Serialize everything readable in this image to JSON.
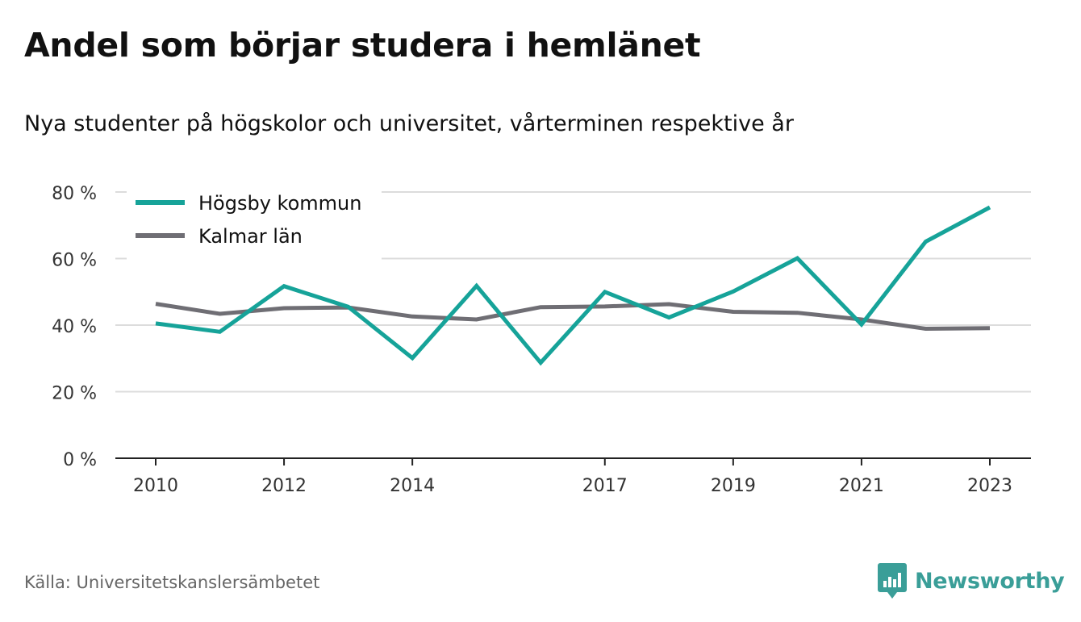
{
  "title": "Andel som börjar studera i hemlänet",
  "subtitle": "Nya studenter på högskolor och universitet, vårterminen respektive år",
  "source": "Källa: Universitetskanslersämbetet",
  "brand": {
    "name": "Newsworthy",
    "icon": "newsworthy-logo-icon",
    "color": "#3a9e98"
  },
  "chart_data": {
    "type": "line",
    "x": [
      2010,
      2011,
      2012,
      2013,
      2014,
      2015,
      2016,
      2017,
      2018,
      2019,
      2020,
      2021,
      2022,
      2023
    ],
    "x_tick_values": [
      2010,
      2012,
      2014,
      2017,
      2019,
      2021,
      2023
    ],
    "x_tick_labels": [
      "2010",
      "2012",
      "2014",
      "2017",
      "2019",
      "2021",
      "2023"
    ],
    "ylim": [
      0,
      80
    ],
    "y_tick_values": [
      0,
      20,
      40,
      60,
      80
    ],
    "y_tick_labels": [
      "0 %",
      "20 %",
      "40 %",
      "60 %",
      "80 %"
    ],
    "grid": true,
    "legend_position": "top-left",
    "series": [
      {
        "name": "Högsby kommun",
        "color": "#16a399",
        "values": [
          40.5,
          38,
          51.7,
          45.5,
          30.1,
          51.8,
          28.7,
          50,
          42.3,
          50.1,
          60.1,
          40.2,
          65.1,
          75.4
        ]
      },
      {
        "name": "Kalmar län",
        "color": "#6f6e74",
        "values": [
          46.4,
          43.4,
          45.1,
          45.3,
          42.6,
          41.7,
          45.4,
          45.6,
          46.3,
          44,
          43.7,
          41.7,
          38.9,
          39.1
        ]
      }
    ]
  }
}
